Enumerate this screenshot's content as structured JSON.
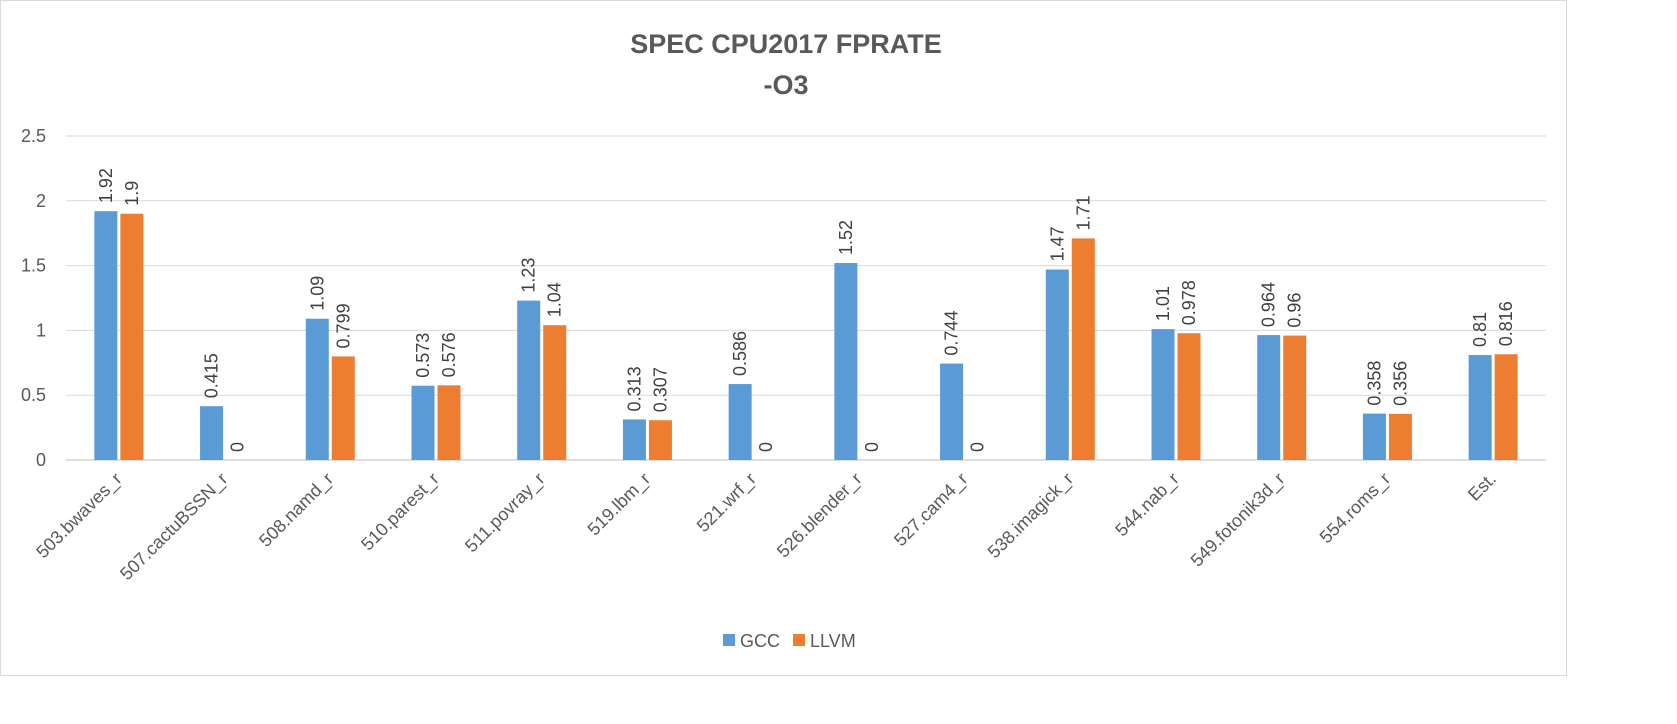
{
  "chart_data": {
    "type": "bar",
    "title": [
      "SPEC CPU2017 FPRATE",
      "-O3"
    ],
    "categories": [
      "503.bwaves_r",
      "507.cactuBSSN_r",
      "508.namd_r",
      "510.parest_r",
      "511.povray_r",
      "519.lbm_r",
      "521.wrf_r",
      "526.blender_r",
      "527.cam4_r",
      "538.imagick_r",
      "544.nab_r",
      "549.fotonik3d_r",
      "554.roms_r",
      "Est."
    ],
    "series": [
      {
        "name": "GCC",
        "color": "#5b9bd5",
        "values": [
          1.92,
          0.415,
          1.09,
          0.573,
          1.23,
          0.313,
          0.586,
          1.52,
          0.744,
          1.47,
          1.01,
          0.964,
          0.358,
          0.81
        ]
      },
      {
        "name": "LLVM",
        "color": "#ed7d31",
        "values": [
          1.9,
          0,
          0.799,
          0.576,
          1.04,
          0.307,
          0,
          0,
          0,
          1.71,
          0.978,
          0.96,
          0.356,
          0.816
        ]
      }
    ],
    "yticks": [
      "0",
      "0.5",
      "1",
      "1.5",
      "2",
      "2.5"
    ],
    "ylim": [
      0,
      2.5
    ],
    "grid": true,
    "legend_position": "bottom"
  }
}
